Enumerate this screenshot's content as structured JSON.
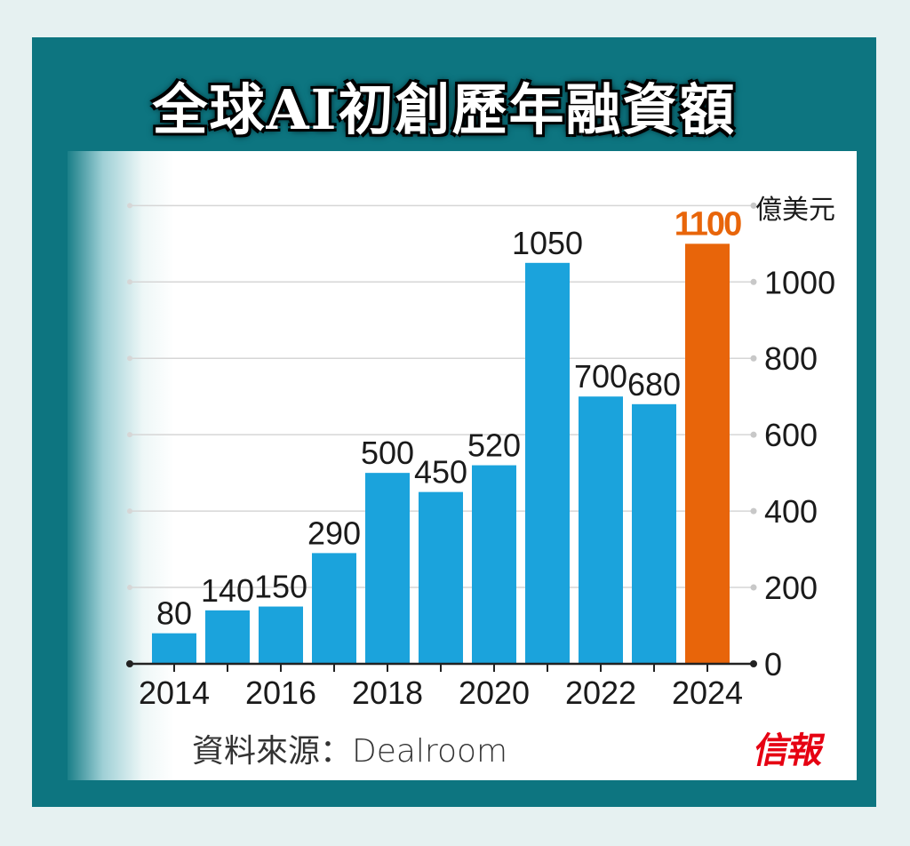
{
  "title": "全球AI初創歷年融資額",
  "source": "資料來源：Dealroom",
  "logo_text": "信報",
  "colors": {
    "frame": "#0d7580",
    "bar": "#1ba3dc",
    "highlight_bar": "#e8650a",
    "highlight_label": "#e8650a",
    "label": "#1a1a1a",
    "grid": "#d6d6d6",
    "logo": "#e60012"
  },
  "chart_data": {
    "type": "bar",
    "title": "全球AI初創歷年融資額",
    "ylabel": "億美元",
    "xlabel": "",
    "categories": [
      "2014",
      "2015",
      "2016",
      "2017",
      "2018",
      "2019",
      "2020",
      "2021",
      "2022",
      "2023",
      "2024"
    ],
    "values": [
      80,
      140,
      150,
      290,
      500,
      450,
      520,
      1050,
      700,
      680,
      1100
    ],
    "highlight_index": 10,
    "x_tick_labels": [
      "2014",
      "2016",
      "2018",
      "2020",
      "2022",
      "2024"
    ],
    "y_ticks": [
      0,
      200,
      400,
      600,
      800,
      1000
    ],
    "ylim": [
      0,
      1200
    ],
    "grid": true,
    "y_axis_side": "right"
  }
}
